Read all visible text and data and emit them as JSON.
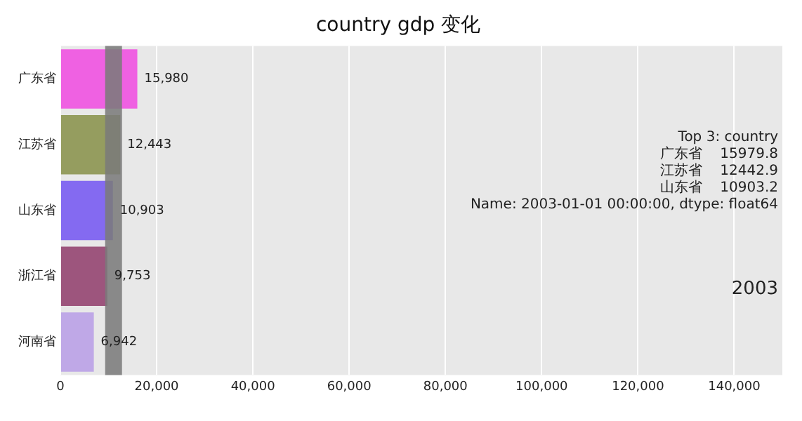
{
  "chart_data": {
    "type": "bar",
    "orientation": "horizontal",
    "title": "country gdp 变化",
    "categories": [
      "广东省",
      "江苏省",
      "山东省",
      "浙江省",
      "河南省"
    ],
    "values": [
      15980,
      12443,
      10903,
      9753,
      6942
    ],
    "value_labels": [
      "15,980",
      "12,443",
      "10,903",
      "9,753",
      "6,942"
    ],
    "colors": [
      "#f03ee0",
      "#808a3c",
      "#6a4af2",
      "#8a2f62",
      "#b497e6"
    ],
    "xlim": [
      0,
      150000
    ],
    "xticks": [
      0,
      {
        "value": 20000,
        "label": "20,000"
      },
      {
        "value": 40000,
        "label": "40,000"
      },
      {
        "value": 60000,
        "label": "60,000"
      },
      {
        "value": 80000,
        "label": "80,000"
      },
      {
        "value": 100000,
        "label": "100,000"
      },
      {
        "value": 120000,
        "label": "120,000"
      },
      {
        "value": 140000,
        "label": "140,000"
      }
    ],
    "bands": [
      {
        "axis": "x",
        "from": 9300,
        "to": 12800,
        "color": "#7a7a7a"
      }
    ],
    "annotations": [
      "Top 3: country",
      "广东省    15979.8",
      "江苏省    12442.9",
      "山东省    10903.2",
      "Name: 2003-01-01 00:00:00, dtype: float64",
      "2003"
    ],
    "grid": "x",
    "legend": false
  }
}
